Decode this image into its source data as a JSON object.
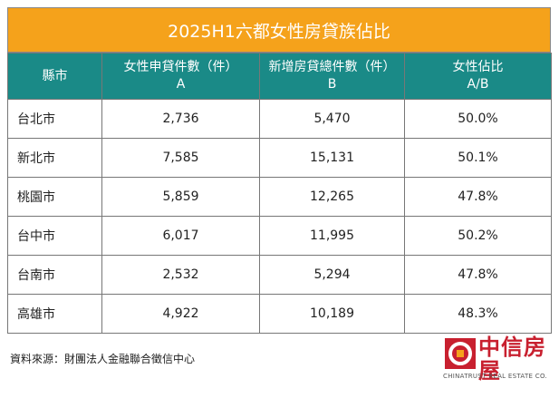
{
  "title": "2025H1六都女性房貸族佔比",
  "table": {
    "header": [
      [
        "縣市"
      ],
      [
        "女性申貸件數（件）",
        "A"
      ],
      [
        "新增房貸總件數（件）",
        "B"
      ],
      [
        "女性佔比",
        "A/B"
      ]
    ],
    "rows": [
      [
        "台北市",
        "2,736",
        "5,470",
        "50.0%"
      ],
      [
        "新北市",
        "7,585",
        "15,131",
        "50.1%"
      ],
      [
        "桃園市",
        "5,859",
        "12,265",
        "47.8%"
      ],
      [
        "台中市",
        "6,017",
        "11,995",
        "50.2%"
      ],
      [
        "台南市",
        "2,532",
        "5,294",
        "47.8%"
      ],
      [
        "高雄市",
        "4,922",
        "10,189",
        "48.3%"
      ]
    ]
  },
  "source": "資料來源：財團法人金融聯合徵信中心",
  "logo": {
    "name": "中信房屋",
    "tagline": "CHINATRUST REAL ESTATE CO."
  }
}
